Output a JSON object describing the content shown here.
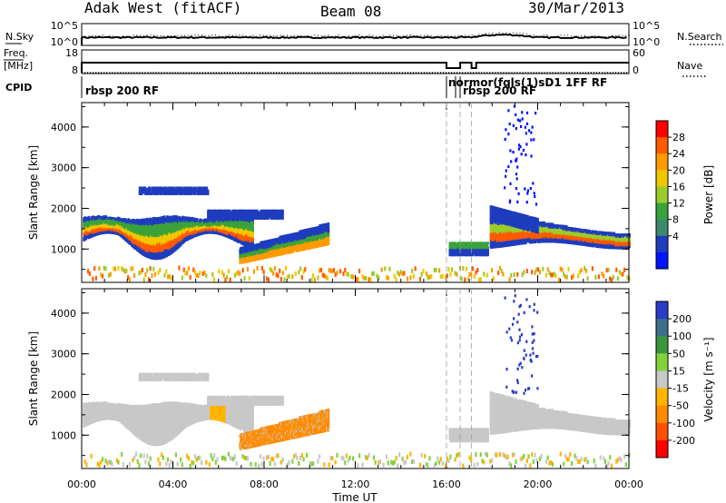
{
  "header": {
    "station": "Adak West (fitACF)",
    "beam": "Beam 08",
    "date": "30/Mar/2013"
  },
  "top_panels": {
    "nsky_label": "N.Sky",
    "nsearch_label": "N.Search",
    "nsky_ticks": [
      "10^5",
      "10^0"
    ],
    "nsearch_ticks": [
      "10^5",
      "10^0"
    ],
    "freq_label": "Freq.",
    "freq_unit": "[MHz]",
    "freq_ticks": [
      "18",
      "8"
    ],
    "nave_label": "Nave",
    "nave_ticks": [
      "60",
      "0"
    ],
    "cpid_label": "CPID",
    "cpid_text_1": "rbsp 200 RF",
    "cpid_text_2": "normor(fqls(1)sD1 1FF RF",
    "cpid_text_3": "rbsp 200 RF"
  },
  "chart_data": [
    {
      "type": "heatmap",
      "name": "power",
      "ylabel": "Slant Range [km]",
      "x_ticks": [
        "00:00",
        "04:00",
        "08:00",
        "12:00",
        "16:00",
        "20:00",
        "00:00"
      ],
      "y_ticks": [
        1000,
        2000,
        3000,
        4000
      ],
      "xlim": [
        0,
        24
      ],
      "ylim": [
        180,
        4600
      ],
      "colorbar": {
        "label": "Power [dB]",
        "ticks": [
          "28",
          "24",
          "20",
          "16",
          "12",
          "8",
          "4"
        ],
        "colors": [
          "#ff0000",
          "#ff5a00",
          "#ff9a00",
          "#f0c800",
          "#9ccc2c",
          "#3aa23a",
          "#3c8a6e",
          "#1e3cbe",
          "#0014ff"
        ]
      }
    },
    {
      "type": "heatmap",
      "name": "velocity",
      "ylabel": "Slant Range [km]",
      "xlabel": "Time UT",
      "x_ticks": [
        "00:00",
        "04:00",
        "08:00",
        "12:00",
        "16:00",
        "20:00",
        "00:00"
      ],
      "y_ticks": [
        1000,
        2000,
        3000,
        4000
      ],
      "xlim": [
        0,
        24
      ],
      "ylim": [
        180,
        4600
      ],
      "colorbar": {
        "label": "Velocity [m s⁻¹]",
        "ticks": [
          "200",
          "100",
          "50",
          "15",
          "-15",
          "-50",
          "-100",
          "-200"
        ],
        "colors": [
          "#2a3cc8",
          "#3c6e8c",
          "#3c963c",
          "#82d23c",
          "#c8c8c8",
          "#ffb400",
          "#ff8c00",
          "#ff5000",
          "#ff0000"
        ]
      }
    }
  ]
}
